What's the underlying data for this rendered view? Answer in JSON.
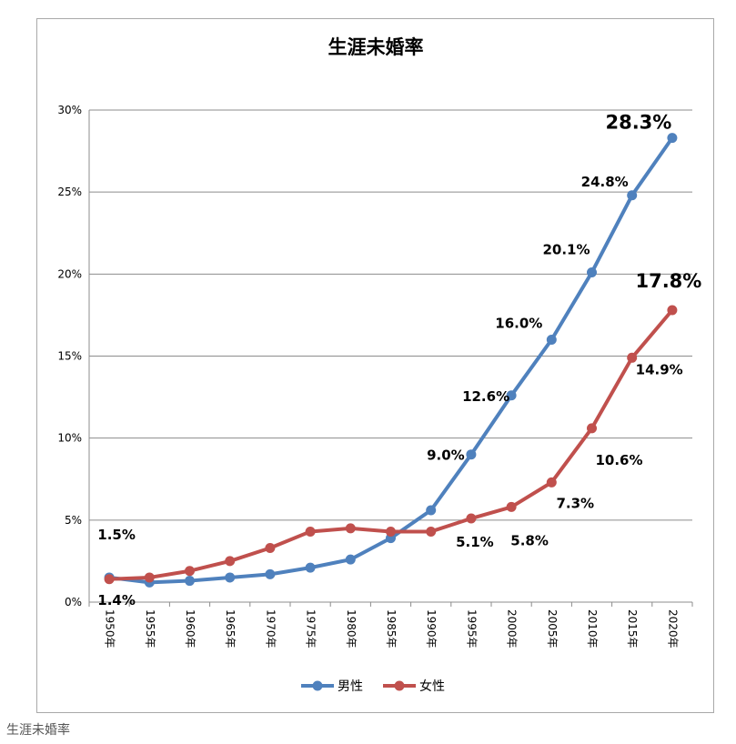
{
  "caption": "生涯未婚率",
  "chart_data": {
    "type": "line",
    "title": "生涯未婚率",
    "categories": [
      "1950年",
      "1955年",
      "1960年",
      "1965年",
      "1970年",
      "1975年",
      "1980年",
      "1985年",
      "1990年",
      "1995年",
      "2000年",
      "2005年",
      "2010年",
      "2015年",
      "2020年"
    ],
    "ylim": [
      0,
      30
    ],
    "yticks": [
      "0%",
      "5%",
      "10%",
      "15%",
      "20%",
      "25%",
      "30%"
    ],
    "grid": true,
    "legend_position": "bottom",
    "series": [
      {
        "name": "男性",
        "color": "#4f81bd",
        "values": [
          1.5,
          1.2,
          1.3,
          1.5,
          1.7,
          2.1,
          2.6,
          3.9,
          5.6,
          9.0,
          12.6,
          16.0,
          20.1,
          24.8,
          28.3
        ],
        "labels": [
          "1.5%",
          "",
          "",
          "",
          "",
          "",
          "",
          "",
          "",
          "9.0%",
          "12.6%",
          "16.0%",
          "20.1%",
          "24.8%",
          "28.3%"
        ]
      },
      {
        "name": "女性",
        "color": "#c0504d",
        "values": [
          1.4,
          1.5,
          1.9,
          2.5,
          3.3,
          4.3,
          4.5,
          4.3,
          4.3,
          5.1,
          5.8,
          7.3,
          10.6,
          14.9,
          17.8
        ],
        "labels": [
          "1.4%",
          "",
          "",
          "",
          "",
          "",
          "",
          "",
          "",
          "5.1%",
          "5.8%",
          "7.3%",
          "10.6%",
          "14.9%",
          "17.8%"
        ]
      }
    ]
  }
}
